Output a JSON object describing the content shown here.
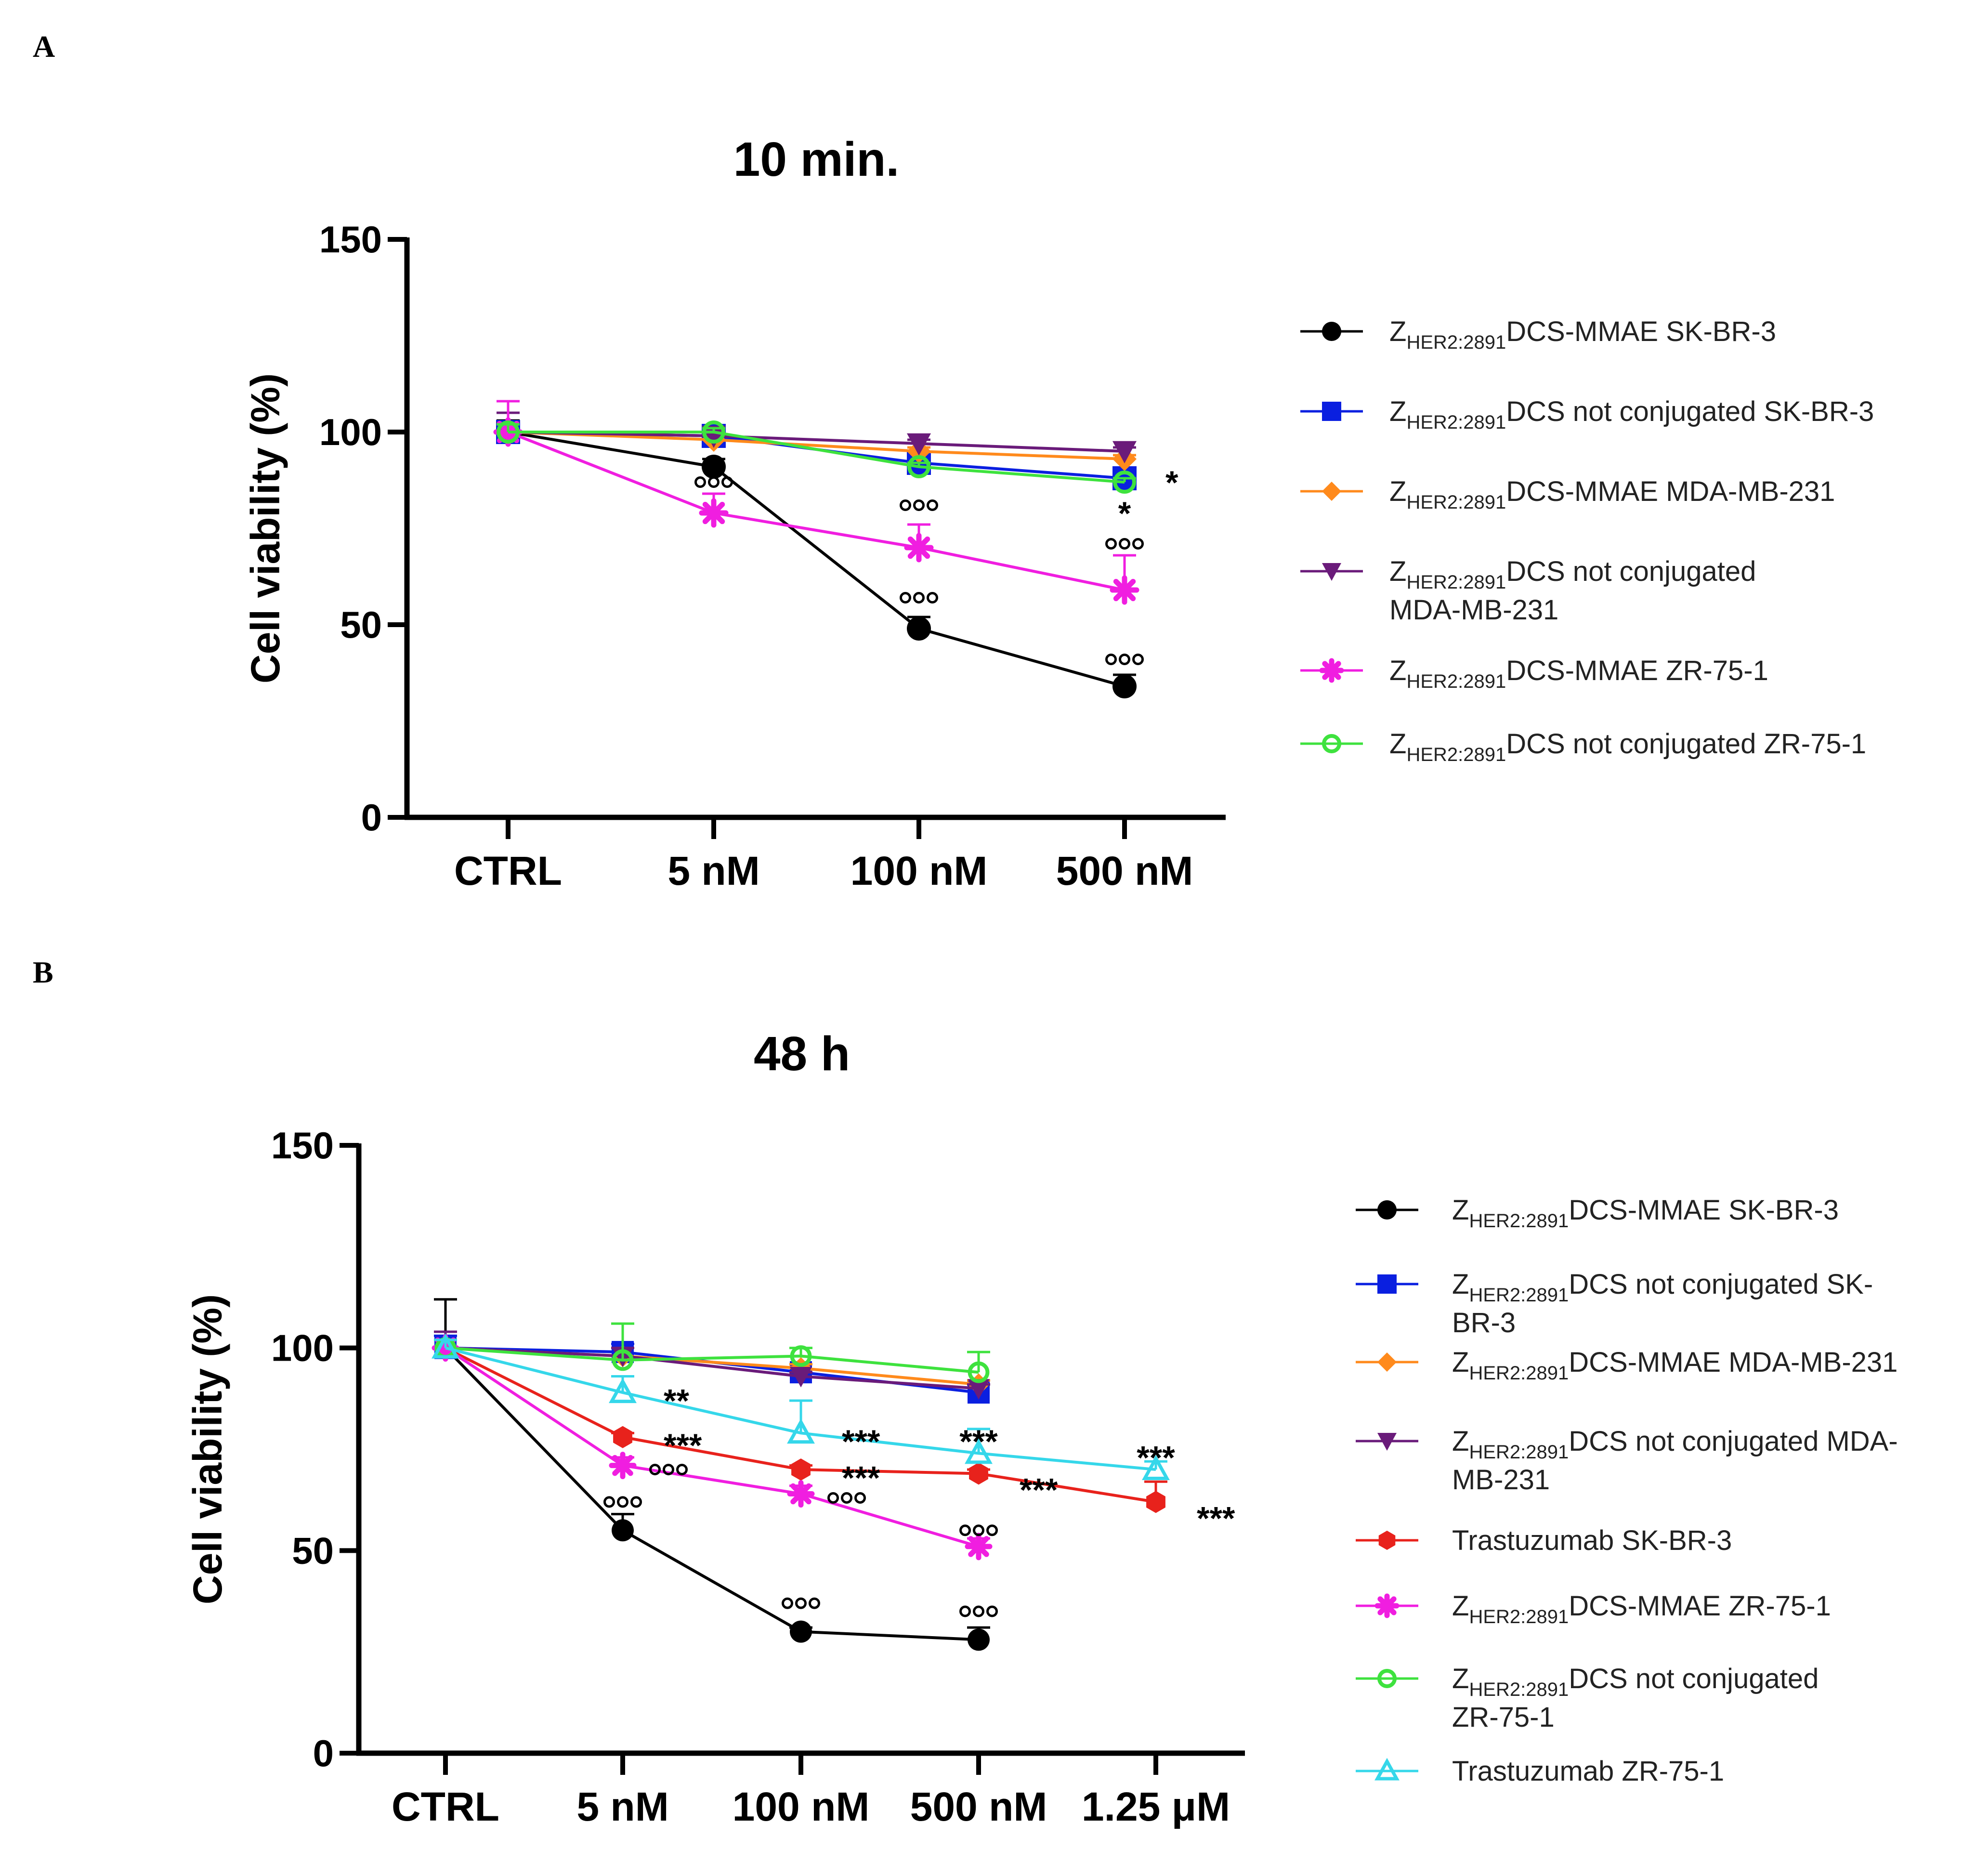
{
  "figure": {
    "panel_a_letter": "A",
    "panel_b_letter": "B"
  },
  "chart_data": [
    {
      "type": "line",
      "panel": "A",
      "title": "10 min.",
      "xlabel": "",
      "ylabel": "Cell viability (%)",
      "ylim": [
        0,
        150
      ],
      "yticks": [
        "0",
        "50",
        "100",
        "150"
      ],
      "categories": [
        "CTRL",
        "5 nM",
        "100 nM",
        "500 nM"
      ],
      "legend_position": "right",
      "series": [
        {
          "name": "ZHER2:2891DCS-MMAE  SK-BR-3",
          "legend_pre": "Z",
          "legend_sub": "HER2:2891",
          "legend_main": "DCS-MMAE  SK-BR-3",
          "legend_line2": "",
          "color": "#000000",
          "marker": "circle",
          "values": [
            100,
            91,
            49,
            34
          ],
          "errors": [
            3,
            2,
            3,
            3
          ]
        },
        {
          "name": "ZHER2:2891DCS not conjugated SK-BR-3",
          "legend_pre": "Z",
          "legend_sub": "HER2:2891",
          "legend_main": "DCS not conjugated SK-BR-3",
          "legend_line2": "",
          "color": "#0a1fe0",
          "marker": "square",
          "values": [
            100,
            99,
            92,
            88
          ],
          "errors": [
            2,
            1,
            2,
            2
          ]
        },
        {
          "name": "ZHER2:2891DCS-MMAE  MDA-MB-231",
          "legend_pre": "Z",
          "legend_sub": "HER2:2891",
          "legend_main": "DCS-MMAE  MDA-MB-231",
          "legend_line2": "",
          "color": "#ff8a1c",
          "marker": "diamond",
          "values": [
            100,
            98,
            95,
            93
          ],
          "errors": [
            2,
            1,
            1,
            1
          ]
        },
        {
          "name": "ZHER2:2891DCS not conjugated MDA-MB-231",
          "legend_pre": "Z",
          "legend_sub": "HER2:2891",
          "legend_main": "DCS not conjugated",
          "legend_line2": "MDA-MB-231",
          "color": "#6a1b7a",
          "marker": "triangle-down",
          "values": [
            100,
            99,
            97,
            95
          ],
          "errors": [
            5,
            1,
            1,
            1
          ]
        },
        {
          "name": "ZHER2:2891DCS-MMAE ZR-75-1",
          "legend_pre": "Z",
          "legend_sub": "HER2:2891",
          "legend_main": "DCS-MMAE ZR-75-1",
          "legend_line2": "",
          "color": "#f01ee0",
          "marker": "star",
          "values": [
            100,
            79,
            70,
            59
          ],
          "errors": [
            8,
            5,
            6,
            9
          ]
        },
        {
          "name": "ZHER2:2891DCS not conjugated ZR-75-1",
          "legend_pre": "Z",
          "legend_sub": "HER2:2891",
          "legend_main": "DCS not conjugated ZR-75-1",
          "legend_line2": "",
          "color": "#3ee23e",
          "marker": "circle-open",
          "values": [
            100,
            100,
            91,
            87
          ],
          "errors": [
            2,
            1,
            1,
            1
          ]
        }
      ],
      "annotations": [
        {
          "text": "ooo",
          "x": "5 nM",
          "y": 87
        },
        {
          "text": "ooo",
          "x": "100 nM",
          "y": 81
        },
        {
          "text": "ooo",
          "x": "100 nM",
          "y": 57
        },
        {
          "text": "ooo",
          "x": "500 nM",
          "y": 71
        },
        {
          "text": "ooo",
          "x": "500 nM",
          "y": 41
        },
        {
          "text": "*",
          "x": "500 nM",
          "y": 88,
          "side": "right"
        },
        {
          "text": "*",
          "x": "500 nM",
          "y": 80
        }
      ]
    },
    {
      "type": "line",
      "panel": "B",
      "title": "48 h",
      "xlabel": "",
      "ylabel": "Cell viability (%)",
      "ylim": [
        0,
        150
      ],
      "yticks": [
        "0",
        "50",
        "100",
        "150"
      ],
      "categories": [
        "CTRL",
        "5 nM",
        "100 nM",
        "500 nM",
        "1.25 μM"
      ],
      "legend_position": "right",
      "series": [
        {
          "name": "ZHER2:2891DCS-MMAE SK-BR-3",
          "legend_pre": "Z",
          "legend_sub": "HER2:2891",
          "legend_main": "DCS-MMAE SK-BR-3",
          "legend_line2": "",
          "color": "#000000",
          "marker": "circle",
          "values": [
            100,
            55,
            30,
            28,
            null
          ],
          "errors": [
            12,
            4,
            1,
            3,
            null
          ]
        },
        {
          "name": "ZHER2:2891DCS not conjugated SK-BR-3",
          "legend_pre": "Z",
          "legend_sub": "HER2:2891",
          "legend_main": "DCS not conjugated SK-",
          "legend_line2": "BR-3",
          "color": "#0a1fe0",
          "marker": "square",
          "values": [
            100,
            99,
            94,
            89,
            null
          ],
          "errors": [
            3,
            2,
            2,
            2,
            null
          ]
        },
        {
          "name": "ZHER2:2891DCS-MMAE MDA-MB-231",
          "legend_pre": "Z",
          "legend_sub": "HER2:2891",
          "legend_main": "DCS-MMAE MDA-MB-231",
          "legend_line2": "",
          "color": "#ff8a1c",
          "marker": "diamond",
          "values": [
            100,
            98,
            95,
            91,
            null
          ],
          "errors": [
            2,
            2,
            1,
            1,
            null
          ]
        },
        {
          "name": "ZHER2:2891DCS not conjugated MDA-MB-231",
          "legend_pre": "Z",
          "legend_sub": "HER2:2891",
          "legend_main": "DCS not conjugated MDA-",
          "legend_line2": "MB-231",
          "color": "#6a1b7a",
          "marker": "triangle-down",
          "values": [
            100,
            98,
            93,
            90,
            null
          ],
          "errors": [
            4,
            2,
            1,
            1,
            null
          ]
        },
        {
          "name": "Trastuzumab SK-BR-3",
          "legend_pre": "",
          "legend_sub": "",
          "legend_main": "Trastuzumab SK-BR-3",
          "legend_line2": "",
          "color": "#e8221c",
          "marker": "hexagon",
          "values": [
            100,
            78,
            70,
            69,
            62
          ],
          "errors": [
            2,
            1,
            1,
            1,
            5
          ]
        },
        {
          "name": "ZHER2:2891DCS-MMAE ZR-75-1",
          "legend_pre": "Z",
          "legend_sub": "HER2:2891",
          "legend_main": "DCS-MMAE ZR-75-1",
          "legend_line2": "",
          "color": "#f01ee0",
          "marker": "star",
          "values": [
            100,
            71,
            64,
            51,
            null
          ],
          "errors": [
            2,
            2,
            2,
            2,
            null
          ]
        },
        {
          "name": "ZHER2:2891DCS not conjugated ZR-75-1",
          "legend_pre": "Z",
          "legend_sub": "HER2:2891",
          "legend_main": "DCS not conjugated",
          "legend_line2": "ZR-75-1",
          "color": "#3ee23e",
          "marker": "circle-open",
          "values": [
            100,
            97,
            98,
            94,
            null
          ],
          "errors": [
            2,
            9,
            2,
            5,
            null
          ]
        },
        {
          "name": "Trastuzumab ZR-75-1",
          "legend_pre": "",
          "legend_sub": "",
          "legend_main": "Trastuzumab ZR-75-1",
          "legend_line2": "",
          "color": "#35d7ea",
          "marker": "triangle-open",
          "values": [
            100,
            89,
            79,
            74,
            70
          ],
          "errors": [
            2,
            4,
            8,
            6,
            2
          ]
        }
      ],
      "annotations": [
        {
          "text": "**",
          "x": "5 nM",
          "y": 88,
          "side": "right"
        },
        {
          "text": "***",
          "x": "5 nM",
          "y": 77,
          "side": "right"
        },
        {
          "text": "ooo",
          "x": "5 nM",
          "y": 70,
          "side": "right"
        },
        {
          "text": "ooo",
          "x": "5 nM",
          "y": 62
        },
        {
          "text": "***",
          "x": "100 nM",
          "y": 78,
          "side": "right"
        },
        {
          "text": "***",
          "x": "100 nM",
          "y": 69,
          "side": "right"
        },
        {
          "text": "ooo",
          "x": "100 nM",
          "y": 63,
          "side": "right"
        },
        {
          "text": "ooo",
          "x": "100 nM",
          "y": 37
        },
        {
          "text": "***",
          "x": "500 nM",
          "y": 78
        },
        {
          "text": "***",
          "x": "500 nM",
          "y": 66,
          "side": "right"
        },
        {
          "text": "ooo",
          "x": "500 nM",
          "y": 55
        },
        {
          "text": "ooo",
          "x": "500 nM",
          "y": 35
        },
        {
          "text": "***",
          "x": "1.25 μM",
          "y": 74
        },
        {
          "text": "***",
          "x": "1.25 μM",
          "y": 59,
          "side": "right"
        }
      ]
    }
  ]
}
